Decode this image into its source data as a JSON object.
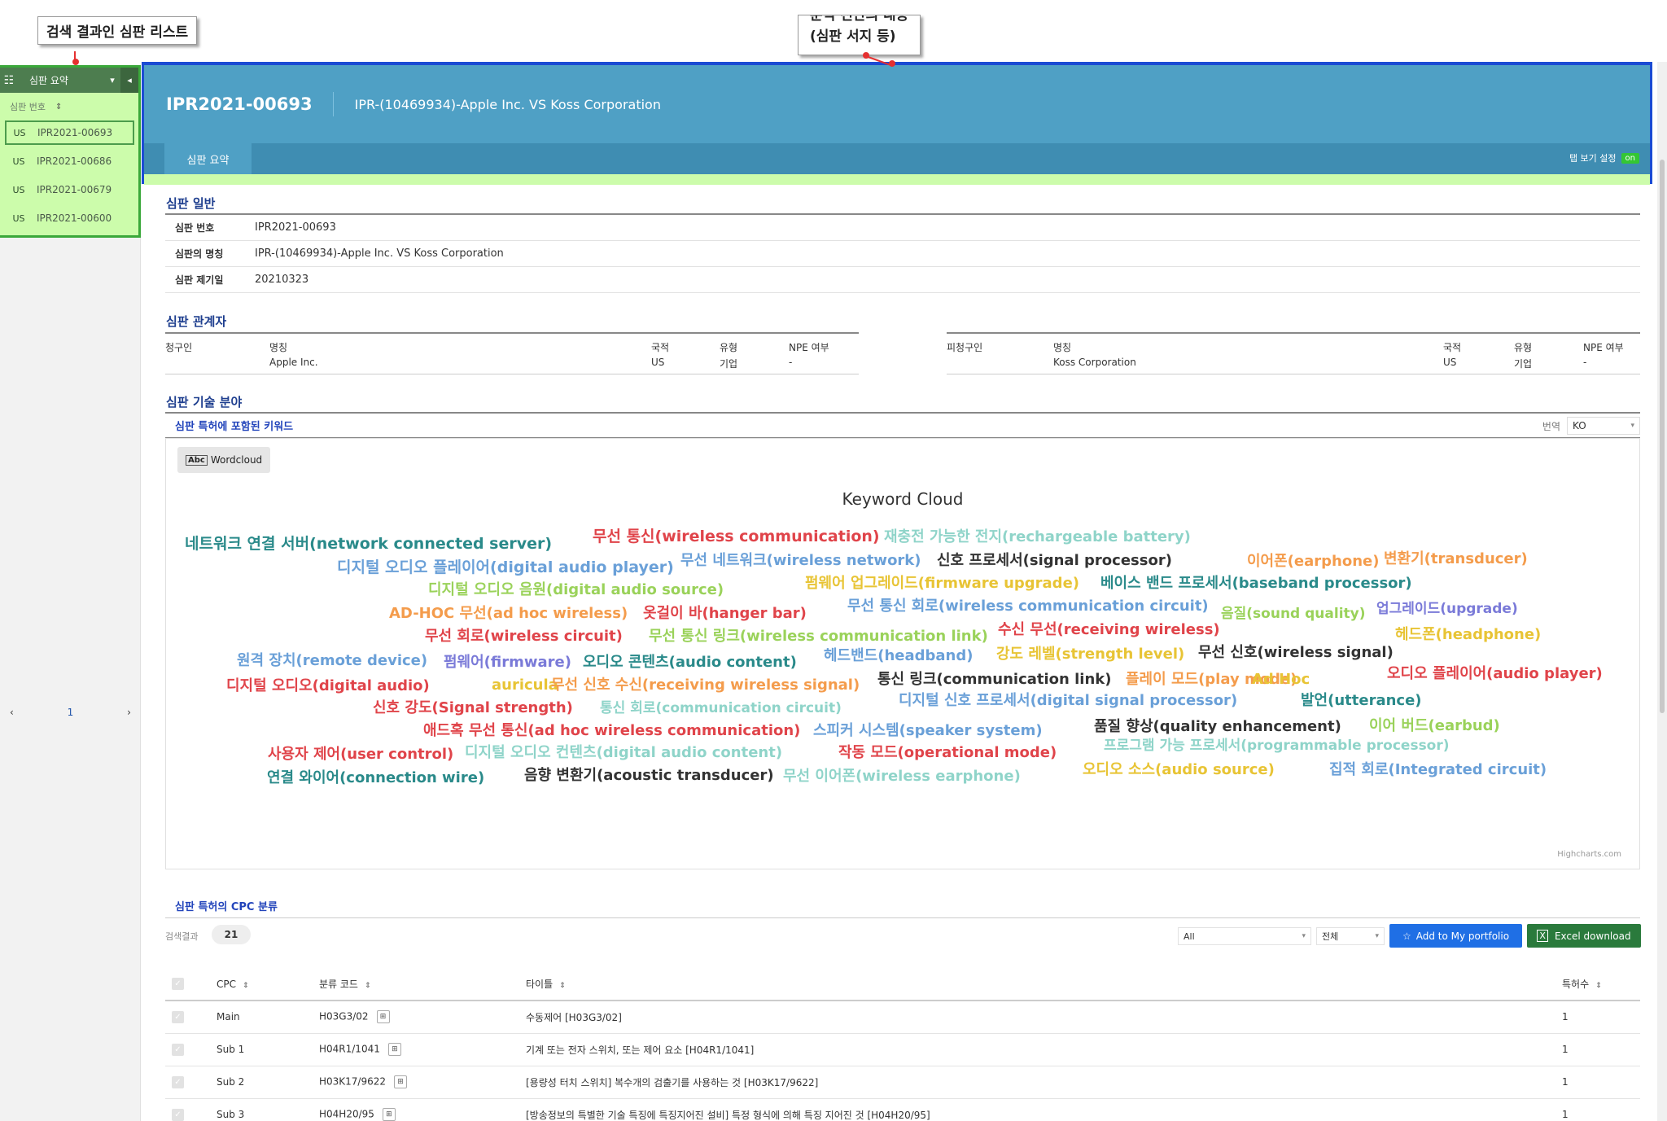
{
  "annotations": {
    "callout_left": "검색 결과인 심판 리스트",
    "callout_right_line1": "분석 전반의 내용",
    "callout_right_line2": "(심판 서지 등)",
    "red": "#e53030"
  },
  "sidebar": {
    "header_label": "심판 요약",
    "sort_label": "심판 번호",
    "items": [
      {
        "country": "US",
        "number": "IPR2021-00693",
        "active": true
      },
      {
        "country": "US",
        "number": "IPR2021-00686",
        "active": false
      },
      {
        "country": "US",
        "number": "IPR2021-00679",
        "active": false
      },
      {
        "country": "US",
        "number": "IPR2021-00600",
        "active": false
      }
    ],
    "pager": {
      "prev": "‹",
      "page": "1",
      "next": "›"
    }
  },
  "banner": {
    "case_id": "IPR2021-00693",
    "case_title": "IPR-(10469934)-Apple Inc. VS Koss Corporation",
    "tab_summary": "심판 요약",
    "tab_setting_label": "탭 보기 설정",
    "tab_setting_toggle": "on",
    "colors": {
      "banner": "#4fa0c5",
      "tabs": "#3f8db2",
      "highlight": "#ccfcab",
      "border": "#1a4bd3"
    }
  },
  "general": {
    "title": "심판 일반",
    "rows": [
      {
        "key": "심판 번호",
        "value": "IPR2021-00693"
      },
      {
        "key": "심판의 명칭",
        "value": "IPR-(10469934)-Apple Inc. VS Koss Corporation"
      },
      {
        "key": "심판 제기일",
        "value": "20210323"
      }
    ]
  },
  "parties": {
    "title": "심판 관계자",
    "petitioner": {
      "role": "청구인",
      "name_label": "명칭",
      "name": "Apple Inc.",
      "country_label": "국적",
      "country": "US",
      "type_label": "유형",
      "type": "기업",
      "npe_label": "NPE 여부",
      "npe": "-"
    },
    "respondent": {
      "role": "피청구인",
      "name_label": "명칭",
      "name": "Koss Corporation",
      "country_label": "국적",
      "country": "US",
      "type_label": "유형",
      "type": "기업",
      "npe_label": "NPE 여부",
      "npe": "-"
    }
  },
  "tech": {
    "title": "심판 기술 분야",
    "keywords_title": "심판 특허에 포함된 키워드",
    "translate_label": "번역",
    "translate_value": "KO",
    "wordcloud_button": "Wordcloud",
    "wordcloud_icon": "abc-icon",
    "cloud_title": "Keyword Cloud",
    "credits": "Highcharts.com",
    "words": [
      {
        "t": "네트워크 연결 서버(network connected server)",
        "c": "#2a8a8a"
      },
      {
        "t": "무선 통신(wireless communication)",
        "c": "#e0444a"
      },
      {
        "t": "재충전 가능한 전지(rechargeable battery)",
        "c": "#8fd4c9"
      },
      {
        "t": "디지털 오디오 플레이어(digital audio player)",
        "c": "#6aa0d8"
      },
      {
        "t": "무선 네트워크(wireless network)",
        "c": "#6aa0d8"
      },
      {
        "t": "신호 프로세서(signal processor)",
        "c": "#333333"
      },
      {
        "t": "이어폰(earphone)",
        "c": "#f49c4c"
      },
      {
        "t": "변환기(transducer)",
        "c": "#f49c4c"
      },
      {
        "t": "디지털 오디오 음원(digital audio source)",
        "c": "#9ad25a"
      },
      {
        "t": "펌웨어 업그레이드(firmware upgrade)",
        "c": "#e8c435"
      },
      {
        "t": "베이스 밴드 프로세서(baseband processor)",
        "c": "#2a8a8a"
      },
      {
        "t": "AD-HOC 무선(ad hoc wireless)",
        "c": "#f49c4c"
      },
      {
        "t": "옷걸이 바(hanger bar)",
        "c": "#e0444a"
      },
      {
        "t": "무선 통신 회로(wireless communication circuit)",
        "c": "#6aa0d8"
      },
      {
        "t": "음질(sound quality)",
        "c": "#9ad25a"
      },
      {
        "t": "업그레이드(upgrade)",
        "c": "#7a7ad8"
      },
      {
        "t": "무선 회로(wireless circuit)",
        "c": "#e0444a"
      },
      {
        "t": "무선 통신 링크(wireless communication link)",
        "c": "#9ad25a"
      },
      {
        "t": "수신 무선(receiving wireless)",
        "c": "#e0444a"
      },
      {
        "t": "헤드폰(headphone)",
        "c": "#e8c435"
      },
      {
        "t": "원격 장치(remote device)",
        "c": "#6aa0d8"
      },
      {
        "t": "펌웨어(firmware)",
        "c": "#7a7ad8"
      },
      {
        "t": "오디오 콘텐츠(audio content)",
        "c": "#2a8a8a"
      },
      {
        "t": "헤드밴드(headband)",
        "c": "#6aa0d8"
      },
      {
        "t": "강도 레벨(strength level)",
        "c": "#e8c435"
      },
      {
        "t": "무선 신호(wireless signal)",
        "c": "#333333"
      },
      {
        "t": "디지털 오디오(digital audio)",
        "c": "#e0444a"
      },
      {
        "t": "auricula",
        "c": "#e8c435"
      },
      {
        "t": "무선 신호 수신(receiving wireless signal)",
        "c": "#f49c4c"
      },
      {
        "t": "통신 링크(communication link)",
        "c": "#333333"
      },
      {
        "t": "플레이 모드(play mode)",
        "c": "#f49c4c"
      },
      {
        "t": "Ad Hoc",
        "c": "#e8c435"
      },
      {
        "t": "오디오 플레이어(audio player)",
        "c": "#e0444a"
      },
      {
        "t": "신호 강도(Signal strength)",
        "c": "#e0444a"
      },
      {
        "t": "통신 회로(communication circuit)",
        "c": "#8fd4c9"
      },
      {
        "t": "디지털 신호 프로세서(digital signal processor)",
        "c": "#6aa0d8"
      },
      {
        "t": "발언(utterance)",
        "c": "#2a8a8a"
      },
      {
        "t": "애드혹 무선 통신(ad hoc wireless communication)",
        "c": "#e0444a"
      },
      {
        "t": "스피커 시스템(speaker system)",
        "c": "#6aa0d8"
      },
      {
        "t": "품질 향상(quality enhancement)",
        "c": "#333333"
      },
      {
        "t": "이어 버드(earbud)",
        "c": "#9ad25a"
      },
      {
        "t": "사용자 제어(user control)",
        "c": "#e0444a"
      },
      {
        "t": "디지털 오디오 컨텐츠(digital audio content)",
        "c": "#8fd4c9"
      },
      {
        "t": "작동 모드(operational mode)",
        "c": "#e0444a"
      },
      {
        "t": "프로그램 가능 프로세서(programmable processor)",
        "c": "#8fd4c9"
      },
      {
        "t": "연결 와이어(connection wire)",
        "c": "#2a8a8a"
      },
      {
        "t": "음향 변환기(acoustic transducer)",
        "c": "#333333"
      },
      {
        "t": "무선 이어폰(wireless earphone)",
        "c": "#8fd4c9"
      },
      {
        "t": "오디오 소스(audio source)",
        "c": "#e8c435"
      },
      {
        "t": "집적 회로(Integrated circuit)",
        "c": "#6aa0d8"
      }
    ]
  },
  "cpc": {
    "title": "심판 특허의 CPC 분류",
    "count_label": "검색결과",
    "count": "21",
    "filter1": "All",
    "filter2": "전체",
    "portfolio_button": "Add to My portfolio",
    "excel_button": "Excel download",
    "columns": {
      "cpc": "CPC",
      "code": "분류 코드",
      "title": "타이틀",
      "count": "특허수"
    },
    "rows": [
      {
        "cpc": "Main",
        "code": "H03G3/02",
        "title": "수동제어 [H03G3/02]",
        "count": "1"
      },
      {
        "cpc": "Sub 1",
        "code": "H04R1/1041",
        "title": "기계 또는 전자 스위치, 또는 제어 요소 [H04R1/1041]",
        "count": "1"
      },
      {
        "cpc": "Sub 2",
        "code": "H03K17/9622",
        "title": "[용량성 터치 스위치] 복수개의 검출기를 사용하는 것 [H03K17/9622]",
        "count": "1"
      },
      {
        "cpc": "Sub 3",
        "code": "H04H20/95",
        "title": "[방송정보의 특별한 기술 특징에 특징지어진 설비] 특정 형식에 의해 특징 지어진 것 [H04H20/95]",
        "count": "1"
      }
    ]
  }
}
